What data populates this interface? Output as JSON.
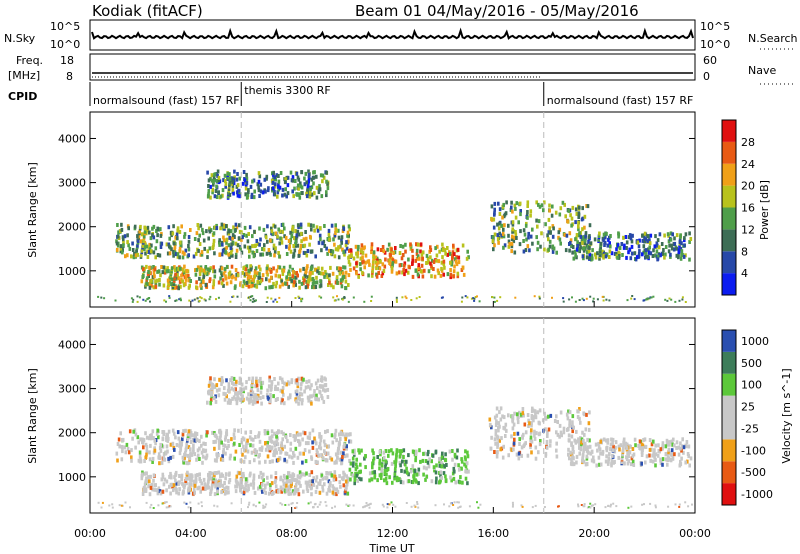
{
  "header": {
    "station": "Kodiak (fitACF)",
    "beam_info": "Beam 01 04/May/2016 - 05/May/2016"
  },
  "top_panels": {
    "nsky_label": "N.Sky",
    "nsky_ticks": [
      "10^5",
      "10^0"
    ],
    "nsearch_label": "N.Search",
    "nsearch_ticks": [
      "10^5",
      "10^0"
    ],
    "freq_label_line1": "Freq.",
    "freq_label_line2": "[MHz]",
    "freq_ticks": [
      "18",
      "8"
    ],
    "nave_label": "Nave",
    "nave_ticks": [
      "60",
      "0"
    ],
    "cpid_label": "CPID",
    "cpid_segments": [
      {
        "text": "normalsound (fast) 157 RF",
        "start_hour": 0
      },
      {
        "text": "themis 3300 RF",
        "start_hour": 6
      },
      {
        "text": "normalsound (fast) 157 RF",
        "start_hour": 18
      }
    ]
  },
  "colors": {
    "power_scale": [
      "#0b1cf0",
      "#2748a8",
      "#3d6d55",
      "#4f9e4a",
      "#b8c21c",
      "#f0a018",
      "#e85a14",
      "#e01010"
    ],
    "velocity_scale": [
      "#e01010",
      "#e85a14",
      "#f0a018",
      "#c8c8c8",
      "#c8c8c8",
      "#5cc83a",
      "#3d7d5a",
      "#2a4fb0"
    ]
  },
  "chart_data": [
    {
      "type": "heatmap",
      "name": "Power",
      "xlabel": "",
      "ylabel": "Slant Range [km]",
      "xlim": [
        0,
        24
      ],
      "ylim": [
        180,
        4600
      ],
      "yticks": [
        1000,
        2000,
        3000,
        4000
      ],
      "colorbar_label": "Power [dB]",
      "colorbar_ticks": [
        "4",
        "8",
        "12",
        "16",
        "20",
        "24",
        "28"
      ],
      "colorbar_range": [
        0,
        30
      ],
      "echo_regions": [
        {
          "t0": 1.0,
          "t1": 10.3,
          "r0": 1350,
          "r1": 2100,
          "value": 11
        },
        {
          "t0": 2.0,
          "t1": 10.2,
          "r0": 650,
          "r1": 1150,
          "value": 14
        },
        {
          "t0": 4.6,
          "t1": 9.4,
          "r0": 2700,
          "r1": 3300,
          "value": 9
        },
        {
          "t0": 10.2,
          "t1": 15.0,
          "r0": 900,
          "r1": 1650,
          "value": 20
        },
        {
          "t0": 15.8,
          "t1": 19.8,
          "r0": 1450,
          "r1": 2600,
          "value": 13
        },
        {
          "t0": 19.0,
          "t1": 23.8,
          "r0": 1300,
          "r1": 1900,
          "value": 8
        }
      ]
    },
    {
      "type": "heatmap",
      "name": "Velocity",
      "xlabel": "Time UT",
      "ylabel": "Slant Range [km]",
      "xlim": [
        0,
        24
      ],
      "ylim": [
        180,
        4600
      ],
      "yticks": [
        1000,
        2000,
        3000,
        4000
      ],
      "xticks": [
        "00:00",
        "04:00",
        "08:00",
        "12:00",
        "16:00",
        "20:00",
        "00:00"
      ],
      "colorbar_label": "Velocity [m s^-1]",
      "colorbar_ticks": [
        "-1000",
        "-500",
        "-100",
        "-25",
        "25",
        "100",
        "500",
        "1000"
      ],
      "echo_regions": [
        {
          "t0": 1.0,
          "t1": 10.3,
          "r0": 1350,
          "r1": 2100,
          "value": 0
        },
        {
          "t0": 2.0,
          "t1": 10.2,
          "r0": 650,
          "r1": 1150,
          "value": 0
        },
        {
          "t0": 4.6,
          "t1": 9.4,
          "r0": 2700,
          "r1": 3300,
          "value": 0
        },
        {
          "t0": 10.2,
          "t1": 15.0,
          "r0": 900,
          "r1": 1650,
          "value": 150
        },
        {
          "t0": 15.8,
          "t1": 19.8,
          "r0": 1450,
          "r1": 2600,
          "value": 0
        },
        {
          "t0": 19.0,
          "t1": 23.8,
          "r0": 1300,
          "r1": 1900,
          "value": 0
        }
      ]
    }
  ]
}
